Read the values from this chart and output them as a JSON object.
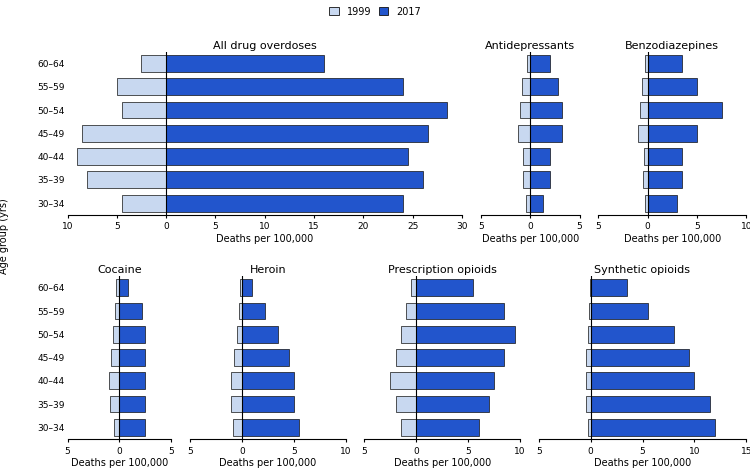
{
  "age_groups": [
    "60–64",
    "55–59",
    "50–54",
    "45–49",
    "40–44",
    "35–39",
    "30–34"
  ],
  "color_1999": "#c8d8f0",
  "color_2017": "#2255cc",
  "edge_color": "#111111",
  "panels": [
    {
      "title": "All drug overdoses",
      "xlim": [
        -10,
        30
      ],
      "xticks": [
        -10,
        -5,
        0,
        5,
        10,
        15,
        20,
        25,
        30
      ],
      "xticklabels": [
        "10",
        "5",
        "0",
        "5",
        "10",
        "15",
        "20",
        "25",
        "30"
      ],
      "vals_1999": [
        2.5,
        5.0,
        4.5,
        8.5,
        9.0,
        8.0,
        4.5
      ],
      "vals_2017": [
        16.0,
        24.0,
        28.5,
        26.5,
        24.5,
        26.0,
        24.0
      ]
    },
    {
      "title": "Antidepressants",
      "xlim": [
        -5,
        5
      ],
      "xticks": [
        -5,
        0,
        5
      ],
      "xticklabels": [
        "5",
        "0",
        "5"
      ],
      "vals_1999": [
        0.3,
        0.8,
        1.0,
        1.2,
        0.7,
        0.7,
        0.4
      ],
      "vals_2017": [
        2.0,
        2.8,
        3.2,
        3.2,
        2.0,
        2.0,
        1.3
      ]
    },
    {
      "title": "Benzodiazepines",
      "xlim": [
        -5,
        10
      ],
      "xticks": [
        -5,
        0,
        5,
        10
      ],
      "xticklabels": [
        "5",
        "0",
        "5",
        "10"
      ],
      "vals_1999": [
        0.3,
        0.6,
        0.8,
        1.0,
        0.4,
        0.5,
        0.3
      ],
      "vals_2017": [
        3.5,
        5.0,
        7.5,
        5.0,
        3.5,
        3.5,
        3.0
      ]
    },
    {
      "title": "Cocaine",
      "xlim": [
        -5,
        5
      ],
      "xticks": [
        -5,
        0,
        5
      ],
      "xticklabels": [
        "5",
        "0",
        "5"
      ],
      "vals_1999": [
        0.3,
        0.4,
        0.6,
        0.8,
        1.0,
        0.9,
        0.5
      ],
      "vals_2017": [
        0.8,
        2.2,
        2.5,
        2.5,
        2.5,
        2.5,
        2.5
      ]
    },
    {
      "title": "Heroin",
      "xlim": [
        -5,
        10
      ],
      "xticks": [
        -5,
        0,
        5,
        10
      ],
      "xticklabels": [
        "5",
        "0",
        "5",
        "10"
      ],
      "vals_1999": [
        0.2,
        0.3,
        0.5,
        0.8,
        1.0,
        1.0,
        0.9
      ],
      "vals_2017": [
        1.0,
        2.2,
        3.5,
        4.5,
        5.0,
        5.0,
        5.5
      ]
    },
    {
      "title": "Prescription opioids",
      "xlim": [
        -5,
        10
      ],
      "xticks": [
        -5,
        0,
        5,
        10
      ],
      "xticklabels": [
        "5",
        "0",
        "5",
        "10"
      ],
      "vals_1999": [
        0.5,
        1.0,
        1.5,
        2.0,
        2.5,
        2.0,
        1.5
      ],
      "vals_2017": [
        5.5,
        8.5,
        9.5,
        8.5,
        7.5,
        7.0,
        6.0
      ]
    },
    {
      "title": "Synthetic opioids",
      "xlim": [
        -5,
        15
      ],
      "xticks": [
        -5,
        0,
        5,
        10,
        15
      ],
      "xticklabels": [
        "5",
        "0",
        "5",
        "10",
        "15"
      ],
      "vals_1999": [
        0.1,
        0.2,
        0.3,
        0.4,
        0.4,
        0.4,
        0.3
      ],
      "vals_2017": [
        3.5,
        5.5,
        8.0,
        9.5,
        10.0,
        11.5,
        12.0
      ]
    }
  ],
  "ylabel": "Age group (yrs)",
  "xlabel": "Deaths per 100,000",
  "title_fontsize": 8,
  "label_fontsize": 7,
  "tick_fontsize": 6.5
}
